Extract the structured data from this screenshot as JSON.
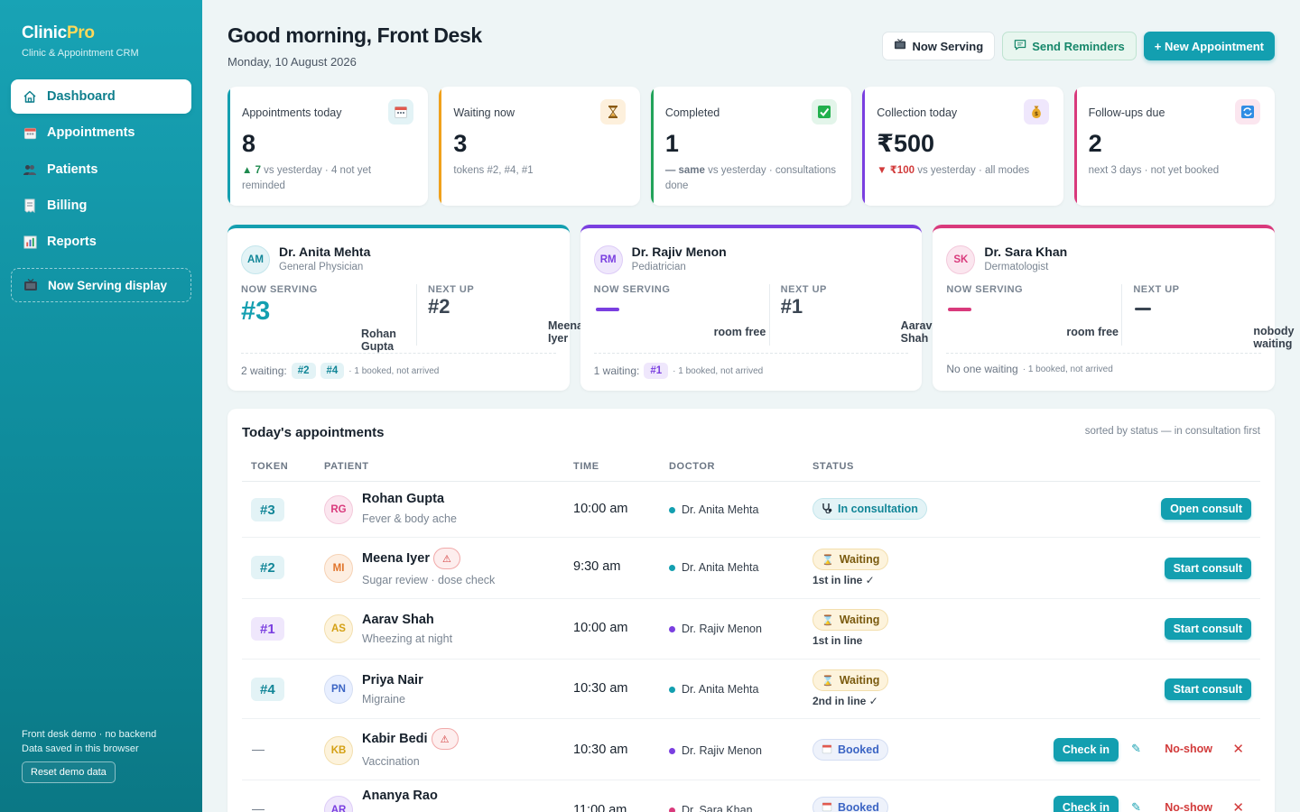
{
  "brand": {
    "name_a": "Clinic",
    "name_b": "Pro",
    "subtitle": "Clinic & Appointment CRM"
  },
  "sidebar": {
    "items": [
      {
        "label": "Dashboard",
        "icon": "home-icon",
        "active": true
      },
      {
        "label": "Appointments",
        "icon": "calendar-icon"
      },
      {
        "label": "Patients",
        "icon": "people-icon"
      },
      {
        "label": "Billing",
        "icon": "receipt-icon"
      },
      {
        "label": "Reports",
        "icon": "chart-icon"
      }
    ],
    "now_serving": "Now Serving display",
    "footer_line1": "Front desk demo · no backend",
    "footer_line2": "Data saved in this browser",
    "reset_label": "Reset demo data"
  },
  "header": {
    "greeting": "Good morning, Front Desk",
    "date": "Monday, 10 August 2026",
    "now_serving_btn": "Now Serving",
    "reminders_btn": "Send Reminders",
    "new_appt_btn": "+ New Appointment"
  },
  "stats": [
    {
      "label": "Appointments today",
      "value": "8",
      "trend": "▲ 7",
      "trend_text": " vs yesterday · 4 not yet reminded",
      "icon": "calendar-icon",
      "accent": "#139fb0"
    },
    {
      "label": "Waiting now",
      "value": "3",
      "trend": "",
      "trend_text": "tokens #2, #4, #1",
      "icon": "hourglass-icon",
      "accent": "#f0a11c"
    },
    {
      "label": "Completed",
      "value": "1",
      "trend": "— same",
      "trend_text": " vs yesterday · consultations done",
      "icon": "check-icon",
      "accent": "#22a35a"
    },
    {
      "label": "Collection today",
      "value": "₹500",
      "trend": "▼ ₹100",
      "trend_text": " vs yesterday · all modes",
      "icon": "moneybag-icon",
      "accent": "#7a3fe0"
    },
    {
      "label": "Follow-ups due",
      "value": "2",
      "trend": "",
      "trend_text": "next 3 days · not yet booked",
      "icon": "repeat-icon",
      "accent": "#d93a7c"
    }
  ],
  "doctors": [
    {
      "initials": "AM",
      "name": "Dr. Anita Mehta",
      "specialty": "General Physician",
      "now_label": "NOW SERVING",
      "now_token": "#3",
      "now_patient": "Rohan Gupta",
      "next_label": "NEXT UP",
      "next_token": "#2",
      "next_patient": "Meena Iyer",
      "waiting_text": "2 waiting:",
      "chips": [
        "#2",
        "#4"
      ],
      "note": "· 1 booked, not arrived",
      "accent": "#139fb0"
    },
    {
      "initials": "RM",
      "name": "Dr. Rajiv Menon",
      "specialty": "Pediatrician",
      "now_label": "NOW SERVING",
      "now_token": "",
      "now_patient": "room free",
      "next_label": "NEXT UP",
      "next_token": "#1",
      "next_patient": "Aarav Shah",
      "waiting_text": "1 waiting:",
      "chips": [
        "#1"
      ],
      "note": "· 1 booked, not arrived",
      "accent": "#7a3fe0"
    },
    {
      "initials": "SK",
      "name": "Dr. Sara Khan",
      "specialty": "Dermatologist",
      "now_label": "NOW SERVING",
      "now_token": "",
      "now_patient": "room free",
      "next_label": "NEXT UP",
      "next_token": "",
      "next_patient": "nobody waiting",
      "waiting_text": "No one waiting",
      "chips": [],
      "note": "· 1 booked, not arrived",
      "accent": "#d93a7c"
    }
  ],
  "appointments": {
    "title": "Today's appointments",
    "sort_note": "sorted by status — in consultation first",
    "columns": [
      "TOKEN",
      "PATIENT",
      "TIME",
      "DOCTOR",
      "STATUS"
    ],
    "rows": [
      {
        "token": "#3",
        "initials": "RG",
        "name": "Rohan Gupta",
        "warn": false,
        "reason": "Fever & body ache",
        "time": "10:00 am",
        "doctor": "Dr. Anita Mehta",
        "status": "In consultation",
        "line_note": "",
        "action": "Open consult"
      },
      {
        "token": "#2",
        "initials": "MI",
        "name": "Meena Iyer",
        "warn": true,
        "reason": "Sugar review · dose check",
        "time": "9:30 am",
        "doctor": "Dr. Anita Mehta",
        "status": "Waiting",
        "line_note": "1st in line ✓",
        "action": "Start consult"
      },
      {
        "token": "#1",
        "initials": "AS",
        "name": "Aarav Shah",
        "warn": false,
        "reason": "Wheezing at night",
        "time": "10:00 am",
        "doctor": "Dr. Rajiv Menon",
        "status": "Waiting",
        "line_note": "1st in line",
        "action": "Start consult"
      },
      {
        "token": "#4",
        "initials": "PN",
        "name": "Priya Nair",
        "warn": false,
        "reason": "Migraine",
        "time": "10:30 am",
        "doctor": "Dr. Anita Mehta",
        "status": "Waiting",
        "line_note": "2nd in line ✓",
        "action": "Start consult"
      },
      {
        "token": "—",
        "initials": "KB",
        "name": "Kabir Bedi",
        "warn": true,
        "reason": "Vaccination",
        "time": "10:30 am",
        "doctor": "Dr. Rajiv Menon",
        "status": "Booked",
        "line_note": "",
        "action": "Check in",
        "noshow": "No-show"
      },
      {
        "token": "—",
        "initials": "AR",
        "name": "Ananya Rao",
        "warn": false,
        "reason": "",
        "time": "11:00 am",
        "doctor": "Dr. Sara Khan",
        "status": "Booked",
        "line_note": "",
        "action": "Check in",
        "noshow": "No-show"
      }
    ]
  }
}
